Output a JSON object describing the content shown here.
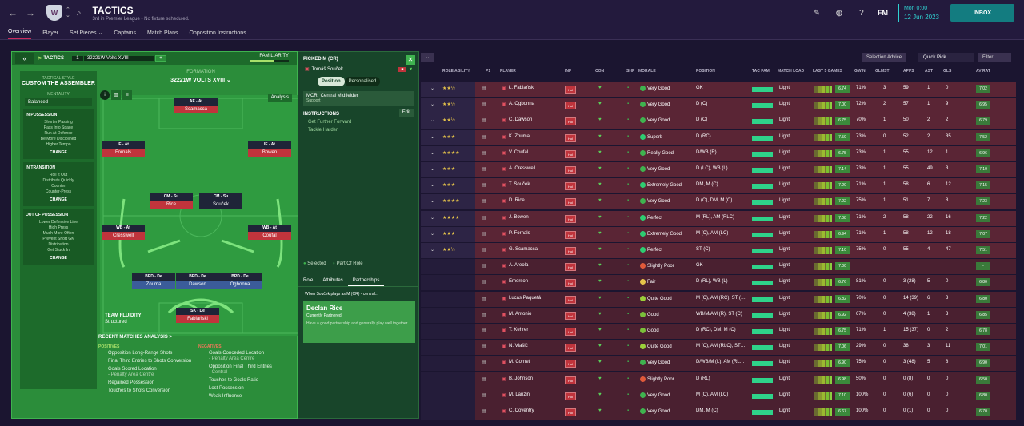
{
  "topbar": {
    "title": "TACTICS",
    "subtitle": "3rd in Premier League - No fixture scheduled.",
    "date_day": "Mon 0:00",
    "date": "12 Jun 2023",
    "inbox": "INBOX",
    "fm": "FM",
    "club_initial": "W"
  },
  "tabs": [
    "Overview",
    "Player",
    "Set Pieces ⌄",
    "Captains",
    "Match Plans",
    "Opposition Instructions"
  ],
  "left": {
    "tactics_label": "TACTICS",
    "slot": "1",
    "tactic_name": "32221W Volts XVIII",
    "familiarity": "FAMILIARITY",
    "style_header": "TACTICAL STYLE",
    "style_name": "CUSTOM THE ASSEMBLER",
    "mentality_label": "MENTALITY",
    "mentality": "Balanced",
    "in_possession": "IN POSSESSION",
    "in_possession_items": [
      "Shorter Passing",
      "Pass Into Space",
      "Run At Defence",
      "Be More Disciplined",
      "Higher Tempo"
    ],
    "in_transition": "IN TRANSITION",
    "in_transition_items": [
      "Roll It Out",
      "Distribute Quickly",
      "Counter",
      "Counter-Press"
    ],
    "out_possession": "OUT OF POSSESSION",
    "out_possession_items": [
      "Lower Defensive Line",
      "High Press",
      "Much More Often",
      "Prevent Short GK",
      "Distribution",
      "Get Stuck In"
    ],
    "change": "CHANGE",
    "formation_header": "FORMATION",
    "formation_name": "32221W VOLTS XVIII ⌄",
    "analysis": "Analysis",
    "players": [
      {
        "role": "AF - At",
        "name": "Scamacca",
        "style": "red"
      },
      {
        "role": "IF - At",
        "name": "Fornals",
        "style": "red"
      },
      {
        "role": "IF - At",
        "name": "Bowen",
        "style": "red"
      },
      {
        "role": "CM - Su",
        "name": "Rice",
        "style": "red"
      },
      {
        "role": "CM - Su",
        "name": "Souček",
        "style": "dk"
      },
      {
        "role": "WB - At",
        "name": "Cresswell",
        "style": "red"
      },
      {
        "role": "WB - At",
        "name": "Coufal",
        "style": "red"
      },
      {
        "role": "BPD - De",
        "name": "Zouma",
        "style": "blue"
      },
      {
        "role": "BPD - De",
        "name": "Dawson",
        "style": "blue"
      },
      {
        "role": "BPD - De",
        "name": "Ogbonna",
        "style": "blue"
      },
      {
        "role": "SK - De",
        "name": "Fabiański",
        "style": "red"
      }
    ],
    "fluidity_label": "TEAM FLUIDITY",
    "fluidity": "Structured",
    "recent": "RECENT MATCHES ANALYSIS >",
    "positives_label": "POSITIVES",
    "negatives_label": "NEGATIVES",
    "positives": [
      "Opposition Long-Range Shots",
      "Final Third Entries to Shots Conversion",
      "Goals Scored Location",
      "- Penalty Area Centre",
      "Regained Possession",
      "Touches to Shots Conversion"
    ],
    "negatives": [
      "Goals Conceded Location",
      "- Penalty Area Centre",
      "Opposition Final Third Entries",
      "- Central",
      "Touches to Goals Ratio",
      "Lost Possession",
      "Weak Influence"
    ]
  },
  "middle": {
    "header": "PICKED M (CR)",
    "player": "Tomáš Souček",
    "pos_toggle": "Position",
    "pers_toggle": "Personalised",
    "role_code": "MCR",
    "role": "Central Midfielder",
    "duty": "Support",
    "instructions": "INSTRUCTIONS",
    "edit": "Edit",
    "instr_items": [
      "Get Further Forward",
      "Tackle Harder"
    ],
    "legend_selected": "Selected",
    "legend_part": "Part Of Role",
    "tabs": [
      "Role",
      "Attributes",
      "Partnerships"
    ],
    "when": "When Souček plays as M (CR) - central...",
    "partner_name": "Declan Rice",
    "partner_status": "Currently Partnered",
    "partner_desc": "Have a good partnership and generally play well together."
  },
  "table": {
    "selection_advice": "Selection Advice",
    "quick_pick": "Quick Pick",
    "filter": "Filter",
    "headers": [
      "ROLE ABILITY",
      "P1",
      "PLAYER",
      "INF",
      "CON",
      "SHP",
      "MORALE",
      "POSITION",
      "TAC FAMI",
      "MATCH LOAD",
      "LAST 5 GAMES",
      "GWIN",
      "GLMST",
      "APPS",
      "AST",
      "GLS",
      "AV RAT"
    ],
    "rows": [
      {
        "stars": "★★½",
        "player": "Ł. Fabiański",
        "morale": "Very Good",
        "position": "GK",
        "load": "Light",
        "rating": "6.74",
        "gwin": "71%",
        "glmst": "3",
        "apps": "59",
        "ast": "1",
        "gls": "0",
        "avrat": "7.02"
      },
      {
        "stars": "★★½",
        "player": "A. Ogbonna",
        "morale": "Very Good",
        "position": "D (C)",
        "load": "Light",
        "rating": "7.00",
        "gwin": "72%",
        "glmst": "2",
        "apps": "57",
        "ast": "1",
        "gls": "9",
        "avrat": "6.95"
      },
      {
        "stars": "★★½",
        "player": "C. Dawson",
        "morale": "Very Good",
        "position": "D (C)",
        "load": "Light",
        "rating": "6.75",
        "gwin": "70%",
        "glmst": "1",
        "apps": "50",
        "ast": "2",
        "gls": "2",
        "avrat": "6.79"
      },
      {
        "stars": "★★★",
        "player": "K. Zouma",
        "morale": "Superb",
        "position": "D (RC)",
        "load": "Light",
        "rating": "7.50",
        "gwin": "73%",
        "glmst": "0",
        "apps": "52",
        "ast": "2",
        "gls": "35",
        "avrat": "7.52"
      },
      {
        "stars": "★★★★",
        "player": "V. Coufal",
        "morale": "Really Good",
        "position": "D/WB (R)",
        "load": "Light",
        "rating": "6.75",
        "gwin": "73%",
        "glmst": "1",
        "apps": "55",
        "ast": "12",
        "gls": "1",
        "avrat": "6.96"
      },
      {
        "stars": "★★★",
        "player": "A. Cresswell",
        "morale": "Very Good",
        "position": "D (LC), WB (L)",
        "load": "Light",
        "rating": "7.14",
        "gwin": "73%",
        "glmst": "1",
        "apps": "55",
        "ast": "49",
        "gls": "3",
        "avrat": "7.10"
      },
      {
        "stars": "★★★",
        "player": "T. Souček",
        "morale": "Extremely Good",
        "position": "DM, M (C)",
        "load": "Light",
        "rating": "7.20",
        "gwin": "71%",
        "glmst": "1",
        "apps": "58",
        "ast": "6",
        "gls": "12",
        "avrat": "7.15"
      },
      {
        "stars": "★★★★",
        "player": "D. Rice",
        "morale": "Very Good",
        "position": "D (C), DM, M (C)",
        "load": "Light",
        "rating": "7.22",
        "gwin": "75%",
        "glmst": "1",
        "apps": "51",
        "ast": "7",
        "gls": "8",
        "avrat": "7.23"
      },
      {
        "stars": "★★★★",
        "player": "J. Bowen",
        "morale": "Perfect",
        "position": "M (RL), AM (RLC)",
        "load": "Light",
        "rating": "7.08",
        "gwin": "71%",
        "glmst": "2",
        "apps": "58",
        "ast": "22",
        "gls": "16",
        "avrat": "7.22"
      },
      {
        "stars": "★★★",
        "player": "P. Fornals",
        "morale": "Extremely Good",
        "position": "M (C), AM (LC)",
        "load": "Light",
        "rating": "6.94",
        "gwin": "71%",
        "glmst": "1",
        "apps": "58",
        "ast": "12",
        "gls": "18",
        "avrat": "7.07"
      },
      {
        "stars": "★★½",
        "player": "G. Scamacca",
        "morale": "Perfect",
        "position": "ST (C)",
        "load": "Light",
        "rating": "7.10",
        "gwin": "75%",
        "glmst": "0",
        "apps": "55",
        "ast": "4",
        "gls": "47",
        "avrat": "7.51"
      },
      {
        "stars": "",
        "player": "A. Areola",
        "morale": "Slightly Poor",
        "position": "GK",
        "load": "Light",
        "rating": "7.00",
        "gwin": "-",
        "glmst": "-",
        "apps": "-",
        "ast": "-",
        "gls": "-",
        "avrat": "-"
      },
      {
        "stars": "",
        "player": "Emerson",
        "morale": "Fair",
        "position": "D (RL), WB (L)",
        "load": "Light",
        "rating": "6.76",
        "gwin": "81%",
        "glmst": "0",
        "apps": "3 (28)",
        "ast": "5",
        "gls": "0",
        "avrat": "6.80"
      },
      {
        "stars": "",
        "player": "Lucas Paquetá",
        "morale": "Quite Good",
        "position": "M (C), AM (RC), ST (…",
        "load": "Light",
        "rating": "6.82",
        "gwin": "70%",
        "glmst": "0",
        "apps": "14 (39)",
        "ast": "6",
        "gls": "3",
        "avrat": "6.80"
      },
      {
        "stars": "",
        "player": "M. Antonio",
        "morale": "Good",
        "position": "WB/M/AM (R), ST (C)",
        "load": "Light",
        "rating": "6.92",
        "gwin": "67%",
        "glmst": "0",
        "apps": "4 (38)",
        "ast": "1",
        "gls": "3",
        "avrat": "6.85"
      },
      {
        "stars": "",
        "player": "T. Kehrer",
        "morale": "Good",
        "position": "D (RC), DM, M (C)",
        "load": "Light",
        "rating": "6.75",
        "gwin": "71%",
        "glmst": "1",
        "apps": "15 (37)",
        "ast": "0",
        "gls": "2",
        "avrat": "6.78"
      },
      {
        "stars": "",
        "player": "N. Vlašić",
        "morale": "Quite Good",
        "position": "M (C), AM (RLC), ST…",
        "load": "Light",
        "rating": "7.06",
        "gwin": "29%",
        "glmst": "0",
        "apps": "38",
        "ast": "3",
        "gls": "11",
        "avrat": "7.01"
      },
      {
        "stars": "",
        "player": "M. Cornet",
        "morale": "Very Good",
        "position": "D/WB/M (L), AM (RL…",
        "load": "Light",
        "rating": "6.90",
        "gwin": "75%",
        "glmst": "0",
        "apps": "3 (48)",
        "ast": "5",
        "gls": "8",
        "avrat": "6.90"
      },
      {
        "stars": "",
        "player": "B. Johnson",
        "morale": "Slightly Poor",
        "position": "D (RL)",
        "load": "Light",
        "rating": "6.98",
        "gwin": "50%",
        "glmst": "0",
        "apps": "0 (8)",
        "ast": "0",
        "gls": "0",
        "avrat": "6.50"
      },
      {
        "stars": "",
        "player": "M. Lanzini",
        "morale": "Very Good",
        "position": "M (C), AM (LC)",
        "load": "Light",
        "rating": "7.10",
        "gwin": "100%",
        "glmst": "0",
        "apps": "0 (6)",
        "ast": "0",
        "gls": "0",
        "avrat": "6.80"
      },
      {
        "stars": "",
        "player": "C. Coventry",
        "morale": "Very Good",
        "position": "DM, M (C)",
        "load": "Light",
        "rating": "6.67",
        "gwin": "100%",
        "glmst": "0",
        "apps": "0 (1)",
        "ast": "0",
        "gls": "0",
        "avrat": "6.70"
      }
    ]
  },
  "colors": {
    "accent": "#2fd2d2",
    "tactic_green": "#2b8d3a",
    "row_red": "#5a2535",
    "positive": "#a8e06a",
    "negative": "#f0785a"
  }
}
